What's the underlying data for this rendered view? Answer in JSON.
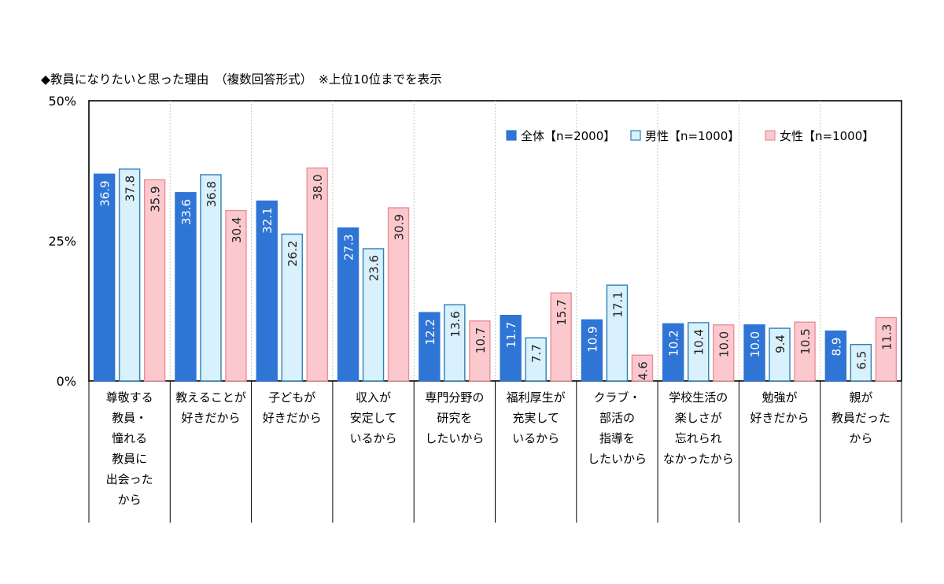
{
  "chart_data": {
    "type": "bar",
    "title": "◆教員になりたいと思った理由　（複数回答形式）　※上位10位までを表示",
    "categories": [
      [
        "尊敬する",
        "教員・",
        "憧れる",
        "教員に",
        "出会った",
        "から"
      ],
      [
        "教えることが",
        "好きだから"
      ],
      [
        "子どもが",
        "好きだから"
      ],
      [
        "収入が",
        "安定して",
        "いるから"
      ],
      [
        "専門分野の",
        "研究を",
        "したいから"
      ],
      [
        "福利厚生が",
        "充実して",
        "いるから"
      ],
      [
        "クラブ・",
        "部活の",
        "指導を",
        "したいから"
      ],
      [
        "学校生活の",
        "楽しさが",
        "忘れられ",
        "なかったから"
      ],
      [
        "勉強が",
        "好きだから"
      ],
      [
        "親が",
        "教員だった",
        "から"
      ]
    ],
    "series": [
      {
        "name": "全体【n=2000】",
        "values": [
          36.9,
          33.6,
          32.1,
          27.3,
          12.2,
          11.7,
          10.9,
          10.2,
          10.0,
          8.9
        ]
      },
      {
        "name": "男性【n=1000】",
        "values": [
          37.8,
          36.8,
          26.2,
          23.6,
          13.6,
          7.7,
          17.1,
          10.4,
          9.4,
          6.5
        ]
      },
      {
        "name": "女性【n=1000】",
        "values": [
          35.9,
          30.4,
          38.0,
          30.9,
          10.7,
          15.7,
          4.6,
          10.0,
          10.5,
          11.3
        ]
      }
    ],
    "yticks": [
      "0%",
      "25%",
      "50%"
    ],
    "ylim": [
      0,
      50
    ],
    "legend_position": "top-right",
    "colors": {
      "fills": [
        "#2e75d6",
        "#d9f1fc",
        "#fbc9cd"
      ],
      "strokes": [
        "#2e75d6",
        "#2e7fb8",
        "#ea8e99"
      ],
      "label_colors": [
        "#ffffff",
        "#222222",
        "#222222"
      ]
    }
  }
}
